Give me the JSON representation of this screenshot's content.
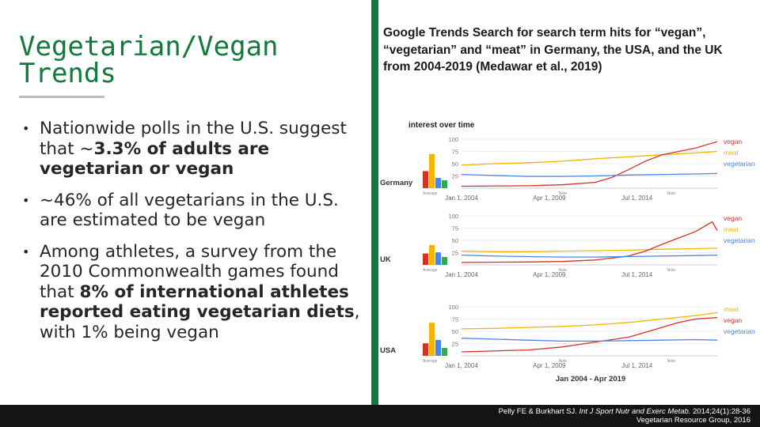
{
  "slide": {
    "title": "Vegetarian/Vegan Trends",
    "bullets": [
      {
        "pre": "Nationwide polls in the U.S. suggest that ~",
        "bold": "3.3% of adults are vegetarian or vegan",
        "post": ""
      },
      {
        "pre": "~46% of all vegetarians in the U.S. are estimated to be vegan",
        "bold": "",
        "post": ""
      },
      {
        "pre": "Among athletes, a survey from the 2010 Commonwealth games found that ",
        "bold": "8% of international athletes reported eating vegetarian diets",
        "post": ", with 1% being vegan"
      }
    ],
    "caption": "Google Trends Search for search term hits for “vegan”, “vegetarian” and “meat” in Germany, the USA, and the UK from 2004-2019 (Medawar et al., 2019)",
    "citation": {
      "authors": "Pelly FE & Burkhart SJ.",
      "journal": "Int J Sport Nutr and Exerc Metab.",
      "ref": "2014;24(1):28-36",
      "line2": "Vegetarian Resource Group, 2016"
    }
  },
  "colors": {
    "accent": "#127a3c",
    "vegan": "#d93025",
    "meat": "#f4b400",
    "vegetarian": "#4a86e8",
    "bar_green": "#34a853",
    "footer_bg": "#141414"
  },
  "chart_data": {
    "type": "line",
    "title": "interest over time",
    "date_range_label": "Jan 2004 - Apr 2019",
    "x_tick_labels": [
      "Jan 1, 2004",
      "Apr 1, 2009",
      "Jul 1, 2014"
    ],
    "x_year_range": [
      2004,
      2019.3
    ],
    "x_tick_years": [
      2004,
      2009.25,
      2014.5
    ],
    "note_label": "Note",
    "average_label": "Average",
    "y_ticks": [
      100,
      75,
      50,
      25
    ],
    "ylim": [
      0,
      100
    ],
    "panels": [
      {
        "country": "Germany",
        "average_bars": [
          {
            "name": "vegan",
            "value": 30
          },
          {
            "name": "meat",
            "value": 60
          },
          {
            "name": "vegetarian",
            "value": 18
          }
        ],
        "legend": [
          {
            "name": "vegan",
            "color": "#d93025"
          },
          {
            "name": "meat",
            "color": "#f4b400"
          },
          {
            "name": "vegetarian",
            "color": "#4a86e8"
          }
        ],
        "series": [
          {
            "name": "meat",
            "color": "#f4b400",
            "x": [
              2004,
              2006,
              2008,
              2010,
              2012,
              2014,
              2016,
              2018,
              2019.3
            ],
            "y": [
              47,
              50,
              52,
              55,
              60,
              64,
              68,
              72,
              75
            ]
          },
          {
            "name": "vegan",
            "color": "#d93025",
            "x": [
              2004,
              2008,
              2010,
              2012,
              2013,
              2014,
              2015,
              2016,
              2017,
              2018,
              2019.3
            ],
            "y": [
              4,
              5,
              7,
              12,
              22,
              38,
              55,
              68,
              75,
              82,
              95
            ]
          },
          {
            "name": "vegetarian",
            "color": "#4a86e8",
            "x": [
              2004,
              2006,
              2008,
              2010,
              2012,
              2014,
              2016,
              2018,
              2019.3
            ],
            "y": [
              28,
              26,
              24,
              24,
              25,
              27,
              28,
              29,
              30
            ]
          }
        ]
      },
      {
        "country": "UK",
        "average_bars": [
          {
            "name": "vegan",
            "value": 20
          },
          {
            "name": "meat",
            "value": 35
          },
          {
            "name": "vegetarian",
            "value": 22
          }
        ],
        "legend": [
          {
            "name": "vegan",
            "color": "#d93025"
          },
          {
            "name": "meat",
            "color": "#f4b400"
          },
          {
            "name": "vegetarian",
            "color": "#4a86e8"
          }
        ],
        "series": [
          {
            "name": "meat",
            "color": "#f4b400",
            "x": [
              2004,
              2006,
              2008,
              2010,
              2012,
              2014,
              2016,
              2018,
              2019.3
            ],
            "y": [
              28,
              27,
              27,
              28,
              29,
              30,
              32,
              33,
              34
            ]
          },
          {
            "name": "vegan",
            "color": "#d93025",
            "x": [
              2004,
              2008,
              2010,
              2012,
              2014,
              2015,
              2016,
              2017,
              2018,
              2019,
              2019.3
            ],
            "y": [
              5,
              6,
              7,
              10,
              18,
              28,
              42,
              55,
              68,
              88,
              70
            ]
          },
          {
            "name": "vegetarian",
            "color": "#4a86e8",
            "x": [
              2004,
              2006,
              2008,
              2010,
              2012,
              2014,
              2016,
              2018,
              2019.3
            ],
            "y": [
              20,
              18,
              17,
              16,
              16,
              17,
              18,
              19,
              20
            ]
          }
        ]
      },
      {
        "country": "USA",
        "average_bars": [
          {
            "name": "vegan",
            "value": 22
          },
          {
            "name": "meat",
            "value": 58
          },
          {
            "name": "vegetarian",
            "value": 28
          }
        ],
        "legend": [
          {
            "name": "meat",
            "color": "#f4b400"
          },
          {
            "name": "vegan",
            "color": "#d93025"
          },
          {
            "name": "vegetarian",
            "color": "#4a86e8"
          }
        ],
        "series": [
          {
            "name": "meat",
            "color": "#f4b400",
            "x": [
              2004,
              2006,
              2008,
              2010,
              2012,
              2014,
              2016,
              2018,
              2019.3
            ],
            "y": [
              55,
              56,
              58,
              60,
              63,
              68,
              75,
              82,
              88
            ]
          },
          {
            "name": "vegan",
            "color": "#d93025",
            "x": [
              2004,
              2008,
              2010,
              2012,
              2014,
              2015,
              2016,
              2017,
              2018,
              2019.3
            ],
            "y": [
              8,
              12,
              18,
              28,
              38,
              48,
              58,
              68,
              75,
              78
            ]
          },
          {
            "name": "vegetarian",
            "color": "#4a86e8",
            "x": [
              2004,
              2006,
              2008,
              2010,
              2012,
              2014,
              2016,
              2018,
              2019.3
            ],
            "y": [
              36,
              34,
              32,
              30,
              30,
              31,
              32,
              33,
              32
            ]
          }
        ]
      }
    ]
  }
}
